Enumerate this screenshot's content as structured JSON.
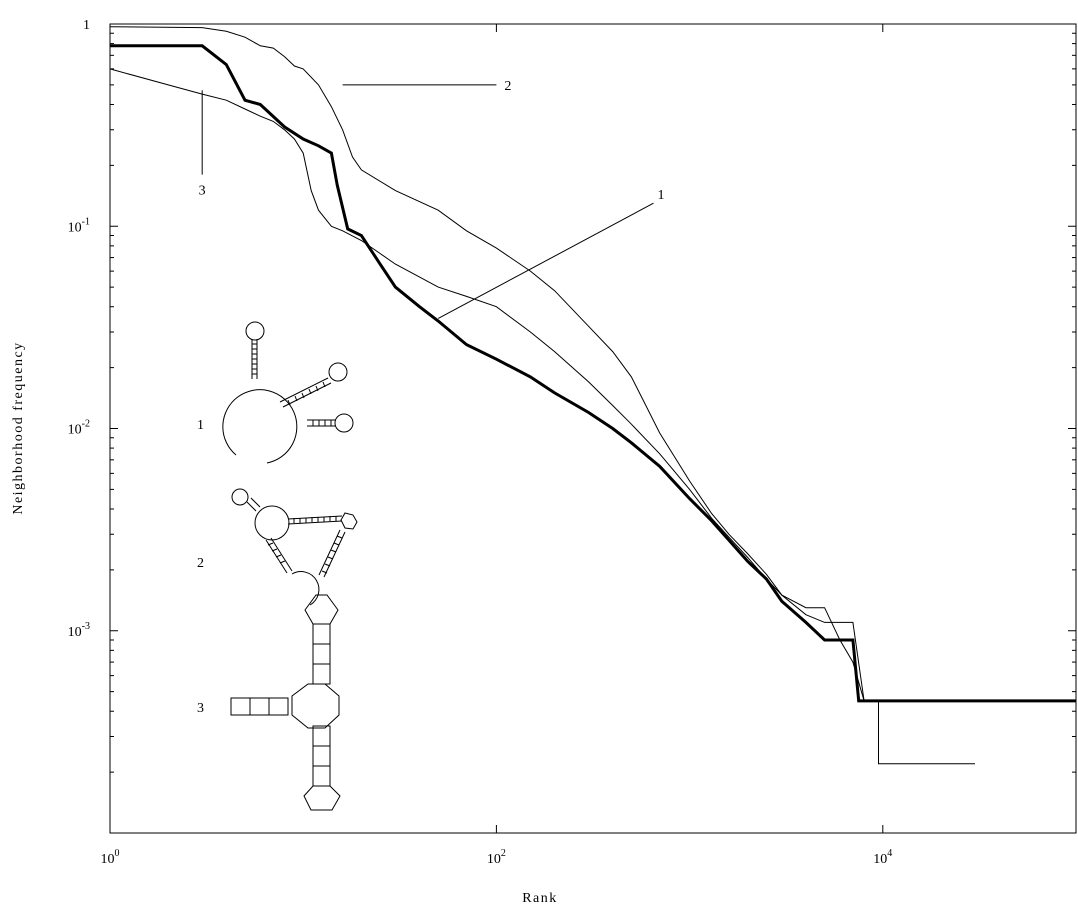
{
  "chart_data": {
    "type": "line",
    "xlabel": "Rank",
    "ylabel": "Neighborhood frequency",
    "xscale": "log",
    "yscale": "log",
    "xlim": [
      1,
      100000
    ],
    "ylim": [
      0.0001,
      1
    ],
    "x_ticks": [
      {
        "value": 1,
        "base": "10",
        "exp": "0"
      },
      {
        "value": 100,
        "base": "10",
        "exp": "2"
      },
      {
        "value": 10000,
        "base": "10",
        "exp": "4"
      }
    ],
    "y_ticks": [
      {
        "value": 1,
        "base": "1",
        "exp": ""
      },
      {
        "value": 0.1,
        "base": "10",
        "exp": "-1"
      },
      {
        "value": 0.01,
        "base": "10",
        "exp": "-2"
      },
      {
        "value": 0.001,
        "base": "10",
        "exp": "-3"
      }
    ],
    "grid": false,
    "legend": "none",
    "series": [
      {
        "label": "1",
        "emphasis": "bold",
        "points": [
          [
            1,
            0.78
          ],
          [
            3,
            0.78
          ],
          [
            4,
            0.63
          ],
          [
            5,
            0.42
          ],
          [
            6,
            0.4
          ],
          [
            8,
            0.31
          ],
          [
            10,
            0.27
          ],
          [
            12,
            0.25
          ],
          [
            14,
            0.23
          ],
          [
            15,
            0.16
          ],
          [
            17,
            0.097
          ],
          [
            20,
            0.09
          ],
          [
            25,
            0.065
          ],
          [
            30,
            0.05
          ],
          [
            40,
            0.04
          ],
          [
            50,
            0.034
          ],
          [
            70,
            0.026
          ],
          [
            100,
            0.022
          ],
          [
            150,
            0.018
          ],
          [
            200,
            0.015
          ],
          [
            300,
            0.012
          ],
          [
            400,
            0.01
          ],
          [
            500,
            0.0085
          ],
          [
            700,
            0.0065
          ],
          [
            1000,
            0.0045
          ],
          [
            1300,
            0.0035
          ],
          [
            1600,
            0.0028
          ],
          [
            2000,
            0.0022
          ],
          [
            2500,
            0.0018
          ],
          [
            3000,
            0.0014
          ],
          [
            4000,
            0.0011
          ],
          [
            5000,
            0.0009
          ],
          [
            7000,
            0.0009
          ],
          [
            7500,
            0.00045
          ],
          [
            100000,
            0.00045
          ]
        ]
      },
      {
        "label": "2",
        "emphasis": "thin",
        "points": [
          [
            1,
            0.97
          ],
          [
            3,
            0.96
          ],
          [
            4,
            0.92
          ],
          [
            5,
            0.86
          ],
          [
            6,
            0.78
          ],
          [
            7,
            0.76
          ],
          [
            8,
            0.69
          ],
          [
            9,
            0.62
          ],
          [
            10,
            0.6
          ],
          [
            12,
            0.5
          ],
          [
            14,
            0.39
          ],
          [
            16,
            0.3
          ],
          [
            18,
            0.22
          ],
          [
            20,
            0.19
          ],
          [
            30,
            0.15
          ],
          [
            50,
            0.12
          ],
          [
            70,
            0.095
          ],
          [
            100,
            0.078
          ],
          [
            150,
            0.06
          ],
          [
            200,
            0.048
          ],
          [
            300,
            0.032
          ],
          [
            400,
            0.024
          ],
          [
            500,
            0.018
          ],
          [
            700,
            0.0095
          ],
          [
            1000,
            0.0055
          ],
          [
            1300,
            0.0038
          ],
          [
            1600,
            0.003
          ],
          [
            2000,
            0.0024
          ],
          [
            2500,
            0.0019
          ],
          [
            3000,
            0.0015
          ],
          [
            4000,
            0.0012
          ],
          [
            5000,
            0.0011
          ],
          [
            7000,
            0.0011
          ],
          [
            8000,
            0.00045
          ],
          [
            100000,
            0.00045
          ]
        ]
      },
      {
        "label": "3",
        "emphasis": "thin",
        "points": [
          [
            1,
            0.6
          ],
          [
            2,
            0.5
          ],
          [
            3,
            0.45
          ],
          [
            4,
            0.42
          ],
          [
            5,
            0.38
          ],
          [
            6,
            0.35
          ],
          [
            7,
            0.33
          ],
          [
            8,
            0.3
          ],
          [
            9,
            0.27
          ],
          [
            10,
            0.23
          ],
          [
            11,
            0.15
          ],
          [
            12,
            0.12
          ],
          [
            14,
            0.1
          ],
          [
            16,
            0.095
          ],
          [
            20,
            0.085
          ],
          [
            30,
            0.065
          ],
          [
            50,
            0.05
          ],
          [
            70,
            0.045
          ],
          [
            100,
            0.04
          ],
          [
            150,
            0.03
          ],
          [
            200,
            0.024
          ],
          [
            300,
            0.017
          ],
          [
            400,
            0.013
          ],
          [
            500,
            0.0105
          ],
          [
            700,
            0.0075
          ],
          [
            1000,
            0.005
          ],
          [
            1300,
            0.0036
          ],
          [
            1600,
            0.0029
          ],
          [
            2000,
            0.0023
          ],
          [
            2500,
            0.0018
          ],
          [
            3000,
            0.0015
          ],
          [
            4000,
            0.0013
          ],
          [
            5000,
            0.0013
          ],
          [
            6000,
            0.0009
          ],
          [
            7000,
            0.0007
          ],
          [
            8000,
            0.00045
          ],
          [
            9500,
            0.00045
          ],
          [
            9500,
            0.00022
          ],
          [
            30000,
            0.00022
          ]
        ]
      }
    ],
    "annotations": [
      {
        "label": "1",
        "series": 0,
        "at": [
          50,
          0.035
        ],
        "text_at": [
          650,
          0.13
        ]
      },
      {
        "label": "2",
        "series": 1,
        "at": [
          16,
          0.5
        ],
        "text_at": [
          100,
          0.5
        ]
      },
      {
        "label": "3",
        "series": 2,
        "at": [
          3,
          0.47
        ],
        "text_at": [
          3,
          0.18
        ]
      }
    ],
    "structure_labels": [
      "1",
      "2",
      "3"
    ]
  }
}
